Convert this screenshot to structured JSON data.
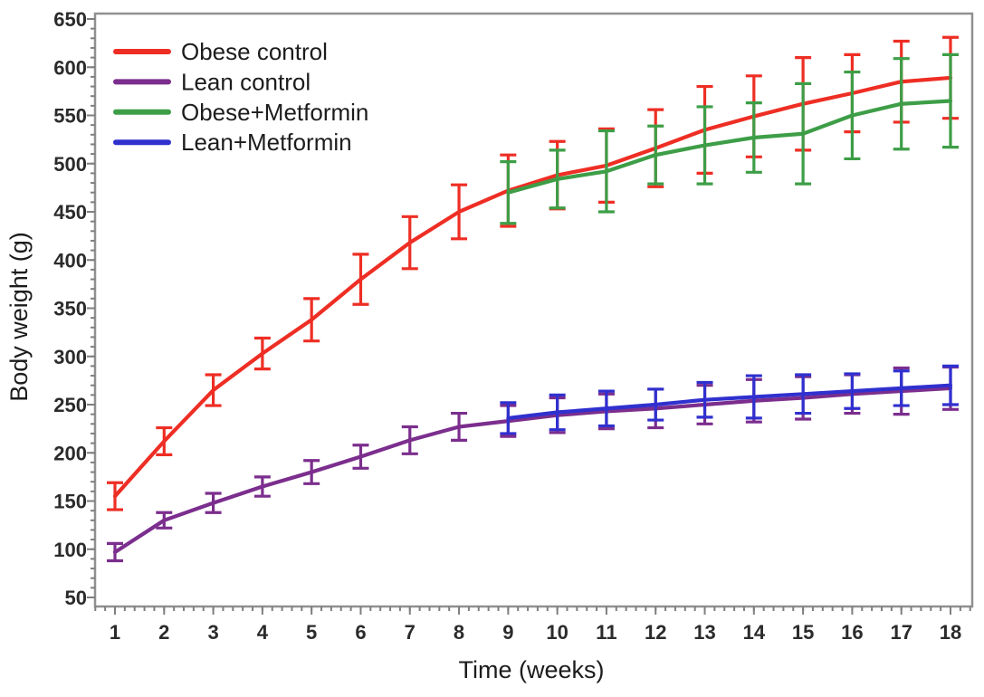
{
  "figure": {
    "background": "#ffffff",
    "frame_color": "#909090",
    "tick_color": "#7f7f7f",
    "tick_label_color": "#2b2b2b"
  },
  "chart_data": {
    "type": "line",
    "title": "",
    "xlabel": "Time (weeks)",
    "ylabel": "Body weight (g)",
    "x_ticks": [
      1,
      2,
      3,
      4,
      5,
      6,
      7,
      8,
      9,
      10,
      11,
      12,
      13,
      14,
      15,
      16,
      17,
      18
    ],
    "y_ticks": [
      50,
      100,
      150,
      200,
      250,
      300,
      350,
      400,
      450,
      500,
      550,
      600,
      650
    ],
    "xlim": [
      0.6,
      18.45
    ],
    "ylim": [
      40,
      656
    ],
    "x_minor_step": 0.2,
    "y_minor_step": 10,
    "grid": false,
    "error_bars": true,
    "legend_position": "top-left-inside",
    "legend_entries": [
      "Obese control",
      "Lean control",
      "Obese+Metformin",
      "Lean+Metformin"
    ],
    "series": [
      {
        "name": "Obese control",
        "color": "#ee2e24",
        "x": [
          1,
          2,
          3,
          4,
          5,
          6,
          7,
          8,
          9,
          10,
          11,
          12,
          13,
          14,
          15,
          16,
          17,
          18
        ],
        "values": [
          155,
          212,
          265,
          303,
          338,
          380,
          418,
          450,
          472,
          488,
          498,
          516,
          535,
          549,
          562,
          573,
          585,
          589
        ],
        "errors": [
          14,
          14,
          16,
          16,
          22,
          26,
          27,
          28,
          37,
          35,
          38,
          40,
          45,
          42,
          48,
          40,
          42,
          42
        ]
      },
      {
        "name": "Lean control",
        "color": "#7b2e8d",
        "x": [
          1,
          2,
          3,
          4,
          5,
          6,
          7,
          8,
          9,
          10,
          11,
          12,
          13,
          14,
          15,
          16,
          17,
          18
        ],
        "values": [
          97,
          130,
          148,
          165,
          180,
          196,
          213,
          227,
          233,
          239,
          243,
          246,
          250,
          254,
          257,
          261,
          264,
          267
        ],
        "errors": [
          9,
          8,
          10,
          10,
          12,
          12,
          14,
          14,
          16,
          18,
          18,
          20,
          20,
          22,
          22,
          20,
          24,
          22
        ]
      },
      {
        "name": "Obese+Metformin",
        "color": "#3d9e47",
        "x": [
          9,
          10,
          11,
          12,
          13,
          14,
          15,
          16,
          17,
          18
        ],
        "values": [
          470,
          484,
          492,
          509,
          519,
          527,
          531,
          550,
          562,
          565
        ],
        "errors": [
          32,
          30,
          42,
          30,
          40,
          36,
          52,
          45,
          47,
          48
        ]
      },
      {
        "name": "Lean+Metformin",
        "color": "#3030cf",
        "x": [
          9,
          10,
          11,
          12,
          13,
          14,
          15,
          16,
          17,
          18
        ],
        "values": [
          236,
          242,
          246,
          250,
          255,
          258,
          261,
          264,
          267,
          270
        ],
        "errors": [
          16,
          18,
          18,
          16,
          18,
          22,
          20,
          18,
          18,
          20
        ]
      }
    ]
  }
}
